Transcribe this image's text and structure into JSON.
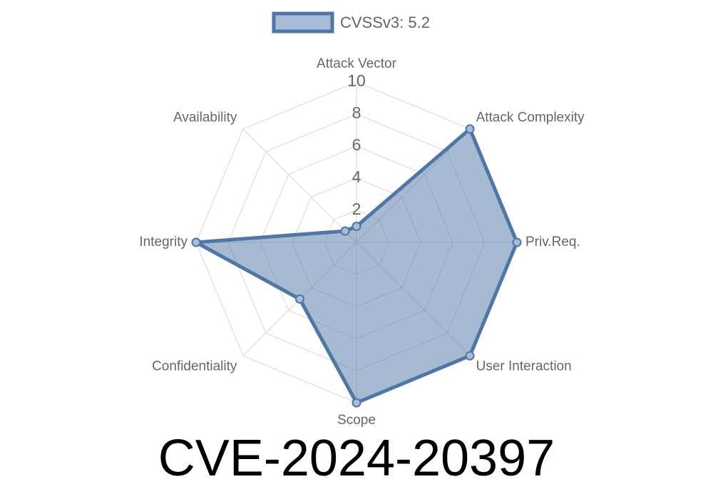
{
  "chart_data": {
    "type": "radar",
    "title": "CVE-2024-20397",
    "categories": [
      "Attack Vector",
      "Attack Complexity",
      "Priv.Req.",
      "User Interaction",
      "Scope",
      "Confidentiality",
      "Integrity",
      "Availability"
    ],
    "series": [
      {
        "name": "CVSSv3: 5.2",
        "color": "#4e76a6",
        "values": [
          1,
          10,
          10,
          10,
          10,
          5,
          10,
          1
        ]
      }
    ],
    "rlim": [
      0,
      10
    ],
    "rticks": [
      2,
      4,
      6,
      8,
      10
    ],
    "grid": true,
    "legend": "top"
  }
}
